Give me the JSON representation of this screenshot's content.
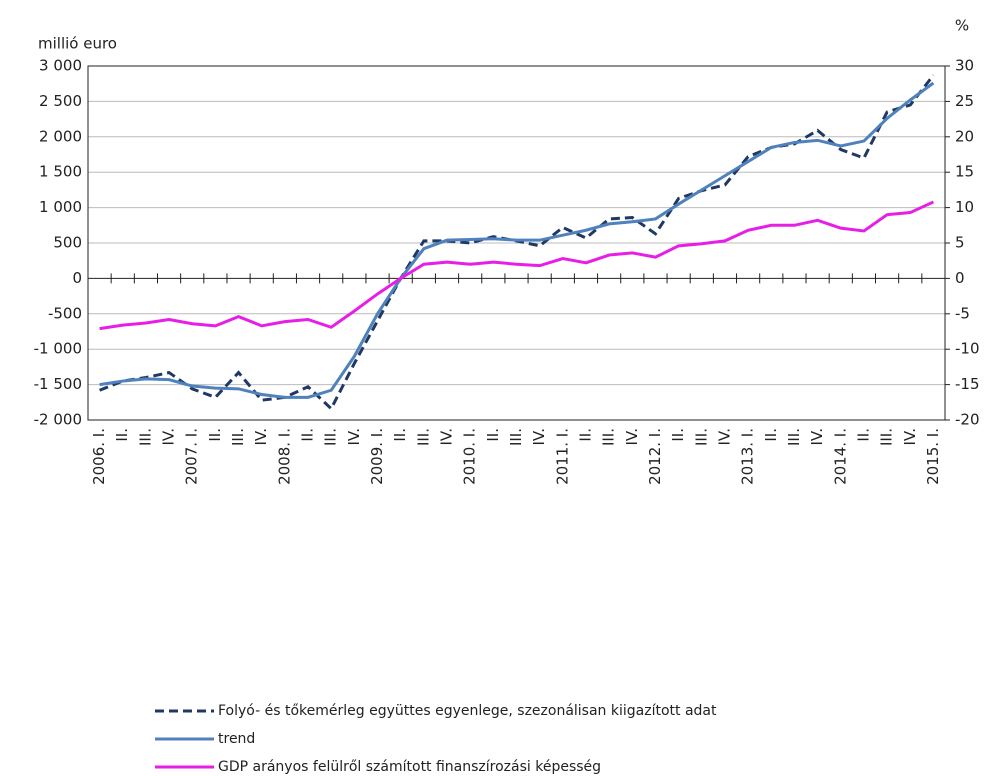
{
  "chart_data": {
    "type": "line",
    "y_label": "millió euro",
    "y2_label": "%",
    "categories": [
      "2006. I.",
      "II.",
      "III.",
      "IV.",
      "2007. I.",
      "II.",
      "III.",
      "IV.",
      "2008. I.",
      "II.",
      "III.",
      "IV.",
      "2009. I.",
      "II.",
      "III.",
      "IV.",
      "2010. I.",
      "II.",
      "III.",
      "IV.",
      "2011. I.",
      "II.",
      "III.",
      "IV.",
      "2012. I.",
      "II.",
      "III.",
      "IV.",
      "2013. I.",
      "II.",
      "III.",
      "IV.",
      "2014. I.",
      "II.",
      "III.",
      "IV.",
      "2015. I."
    ],
    "series": [
      {
        "name": "Folyó- és tőkemérleg együttes egyenlege, szezonálisan kiigazított adat",
        "color": "#1f3864",
        "dash": "dashed",
        "axis": "y",
        "values": [
          -1580,
          -1450,
          -1400,
          -1330,
          -1560,
          -1680,
          -1330,
          -1720,
          -1680,
          -1530,
          -1840,
          -1200,
          -600,
          0,
          530,
          530,
          500,
          590,
          530,
          460,
          720,
          570,
          840,
          860,
          630,
          1130,
          1240,
          1320,
          1720,
          1850,
          1900,
          2090,
          1820,
          1700,
          2350,
          2450,
          2870
        ]
      },
      {
        "name": "trend",
        "color": "#4f81bd",
        "dash": "solid",
        "axis": "y",
        "values": [
          -1500,
          -1450,
          -1420,
          -1430,
          -1520,
          -1550,
          -1560,
          -1640,
          -1680,
          -1680,
          -1580,
          -1100,
          -500,
          0,
          420,
          540,
          550,
          560,
          540,
          540,
          610,
          680,
          770,
          800,
          840,
          1050,
          1250,
          1450,
          1650,
          1850,
          1920,
          1950,
          1870,
          1940,
          2260,
          2520,
          2760
        ]
      },
      {
        "name": "GDP arányos felülről számított finanszírozási képesség",
        "color": "#e61ee6",
        "dash": "solid",
        "axis": "y2",
        "values": [
          -7.1,
          -6.6,
          -6.3,
          -5.8,
          -6.4,
          -6.7,
          -5.4,
          -6.7,
          -6.1,
          -5.8,
          -6.9,
          -4.6,
          -2.2,
          0,
          2.0,
          2.3,
          2.0,
          2.3,
          2.0,
          1.8,
          2.8,
          2.2,
          3.3,
          3.6,
          3.0,
          4.6,
          4.9,
          5.3,
          6.8,
          7.5,
          7.5,
          8.2,
          7.1,
          6.7,
          9.0,
          9.3,
          10.8
        ]
      }
    ],
    "ylim": [
      -2000,
      3000
    ],
    "yticks": [
      {
        "value": -2000,
        "label": "-2 000"
      },
      {
        "value": -1500,
        "label": "-1 500"
      },
      {
        "value": -1000,
        "label": "-1 000"
      },
      -500,
      0,
      500,
      {
        "value": 1000,
        "label": "1 000"
      },
      {
        "value": 1500,
        "label": "1 500"
      },
      {
        "value": 2000,
        "label": "2 000"
      },
      {
        "value": 2500,
        "label": "2 500"
      },
      {
        "value": 3000,
        "label": "3 000"
      }
    ],
    "y2lim": [
      -20,
      30
    ],
    "y2ticks": [
      -20,
      -15,
      -10,
      -5,
      0,
      5,
      10,
      15,
      20,
      25,
      30
    ],
    "grid": true,
    "legend": "bottom"
  }
}
